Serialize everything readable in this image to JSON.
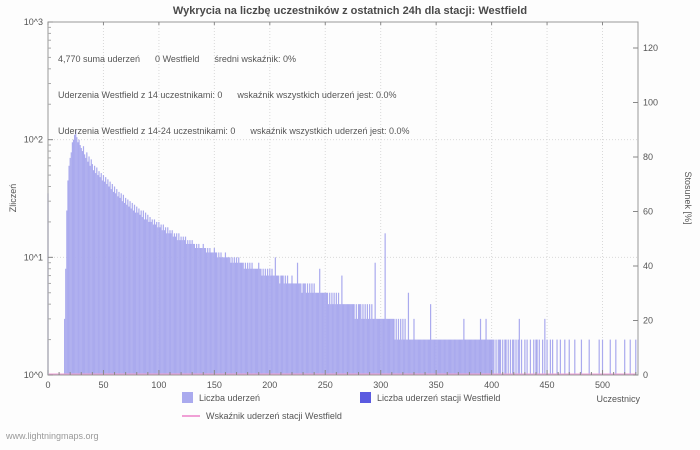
{
  "title": "Wykrycia na liczbę uczestników z ostatnich 24h dla stacji: Westfield",
  "annotations": {
    "line1": "4,770 suma uderzeń      0 Westfield      średni wskaźnik: 0%",
    "line2": "Uderzenia Westfield z 14 uczestnikami: 0      wskaźnik wszystkich uderzeń jest: 0.0%",
    "line3": "Uderzenia Westfield z 14-24 uczestnikami: 0      wskaźnik wszystkich uderzeń jest: 0.0%"
  },
  "legend": {
    "items": [
      {
        "label": "Liczba uderzeń",
        "color": "#aaaaee",
        "swatch": "box"
      },
      {
        "label": "Liczba uderzeń stacji Westfield",
        "color": "#5a5ae0",
        "swatch": "box"
      },
      {
        "label": "Wskaźnik uderzeń stacji Westfield",
        "color": "#f0a0d6",
        "swatch": "line"
      }
    ]
  },
  "footer": "www.lightningmaps.org",
  "chart_data": {
    "type": "bar",
    "title": "Wykrycia na liczbę uczestników z ostatnich 24h dla stacji: Westfield",
    "xlabel": "Uczestnicy",
    "ylabel_left": "Zliczeń",
    "ylabel_right": "Stosunek [%]",
    "y_scale": "log10",
    "ylim_left": [
      1,
      1000
    ],
    "ylim_right": [
      0,
      120
    ],
    "total_hits": 4770,
    "westfield_hits": 0,
    "mean_ratio_pct": 0,
    "x_ticks": [
      0,
      50,
      100,
      150,
      200,
      250,
      300,
      350,
      400,
      450,
      500
    ],
    "y_left_ticks": [
      "10^0",
      "10^1",
      "10^2",
      "10^3"
    ],
    "y_right_ticks": [
      0,
      20,
      40,
      60,
      80,
      100,
      120
    ],
    "x_max": 532,
    "bar_color": "#aaaaee",
    "westfield_color": "#5a5ae0",
    "ratio_color": "#f0a0d6",
    "series_name": "Liczba uderzeń",
    "ratio_series": {
      "name": "Wskaźnik uderzeń stacji Westfield",
      "constant_value": 0
    },
    "values": [
      35,
      0,
      0,
      0,
      0,
      0,
      0,
      0,
      0,
      0,
      0,
      0,
      0,
      0,
      0,
      3,
      8,
      25,
      45,
      60,
      70,
      78,
      95,
      100,
      110,
      120,
      105,
      95,
      100,
      90,
      85,
      80,
      88,
      75,
      70,
      78,
      65,
      72,
      60,
      68,
      62,
      55,
      60,
      52,
      58,
      50,
      54,
      48,
      52,
      45,
      50,
      44,
      48,
      42,
      46,
      40,
      44,
      38,
      42,
      36,
      40,
      35,
      38,
      33,
      36,
      32,
      35,
      30,
      34,
      29,
      32,
      28,
      31,
      27,
      30,
      26,
      29,
      25,
      28,
      24,
      27,
      24,
      26,
      23,
      25,
      22,
      25,
      21,
      24,
      21,
      23,
      20,
      22,
      20,
      21,
      19,
      21,
      19,
      20,
      18,
      20,
      18,
      19,
      17,
      19,
      17,
      18,
      16,
      18,
      16,
      17,
      16,
      17,
      15,
      16,
      15,
      16,
      14,
      16,
      14,
      15,
      14,
      15,
      14,
      15,
      13,
      14,
      13,
      14,
      13,
      14,
      13,
      13,
      12,
      13,
      12,
      13,
      12,
      12,
      12,
      13,
      12,
      12,
      11,
      12,
      11,
      12,
      11,
      11,
      11,
      12,
      11,
      11,
      10,
      11,
      10,
      11,
      10,
      10,
      10,
      11,
      10,
      10,
      10,
      10,
      9,
      10,
      9,
      10,
      9,
      10,
      9,
      10,
      9,
      9,
      9,
      9,
      8,
      9,
      8,
      9,
      8,
      9,
      8,
      9,
      8,
      8,
      8,
      8,
      8,
      9,
      8,
      8,
      7,
      8,
      7,
      8,
      7,
      8,
      7,
      8,
      7,
      8,
      7,
      7,
      10,
      7,
      7,
      7,
      6,
      7,
      7,
      7,
      6,
      7,
      6,
      7,
      6,
      6,
      6,
      7,
      6,
      6,
      6,
      6,
      9,
      6,
      6,
      6,
      5,
      6,
      6,
      6,
      5,
      6,
      5,
      6,
      5,
      6,
      5,
      6,
      5,
      5,
      5,
      5,
      8,
      5,
      5,
      5,
      5,
      5,
      5,
      5,
      4,
      5,
      4,
      5,
      4,
      5,
      4,
      5,
      4,
      5,
      4,
      4,
      7,
      4,
      4,
      4,
      4,
      4,
      4,
      4,
      4,
      4,
      4,
      4,
      3,
      4,
      3,
      4,
      4,
      4,
      3,
      4,
      3,
      4,
      3,
      4,
      3,
      4,
      3,
      4,
      3,
      3,
      9,
      3,
      3,
      3,
      3,
      3,
      3,
      3,
      3,
      16,
      3,
      3,
      3,
      3,
      3,
      3,
      3,
      3,
      2,
      3,
      2,
      3,
      2,
      3,
      2,
      3,
      2,
      3,
      2,
      2,
      5,
      2,
      2,
      2,
      2,
      3,
      2,
      2,
      2,
      2,
      2,
      2,
      2,
      2,
      2,
      2,
      2,
      2,
      2,
      2,
      4,
      2,
      2,
      2,
      2,
      2,
      2,
      2,
      2,
      2,
      2,
      2,
      2,
      2,
      2,
      2,
      2,
      2,
      2,
      2,
      2,
      2,
      2,
      2,
      2,
      2,
      2,
      2,
      2,
      2,
      3,
      2,
      2,
      2,
      2,
      2,
      2,
      2,
      2,
      2,
      2,
      2,
      2,
      2,
      2,
      3,
      2,
      2,
      2,
      2,
      3,
      2,
      2,
      2,
      2,
      2,
      2,
      2,
      0,
      2,
      0,
      2,
      2,
      2,
      0,
      2,
      0,
      2,
      2,
      0,
      2,
      0,
      2,
      0,
      2,
      2,
      0,
      2,
      0,
      2,
      3,
      0,
      2,
      0,
      0,
      2,
      0,
      2,
      0,
      0,
      2,
      0,
      0,
      2,
      0,
      2,
      2,
      0,
      2,
      0,
      0,
      2,
      0,
      3,
      0,
      2,
      0,
      0,
      2,
      0,
      2,
      0,
      0,
      0,
      2,
      0,
      0,
      2,
      0,
      0,
      0,
      2,
      0,
      0,
      0,
      2,
      0,
      0,
      0,
      0,
      2,
      0,
      0,
      0,
      0,
      0,
      2,
      0,
      0,
      0,
      0,
      0,
      0,
      2,
      0,
      0,
      0,
      0,
      0,
      0,
      0,
      0,
      2,
      0,
      0,
      2,
      0,
      0,
      0,
      0,
      0,
      0,
      2,
      0,
      0,
      0,
      0,
      2,
      0,
      0,
      0,
      0,
      0,
      0,
      0,
      2,
      0,
      0,
      0,
      0,
      2,
      0,
      0,
      0,
      0,
      2
    ]
  }
}
